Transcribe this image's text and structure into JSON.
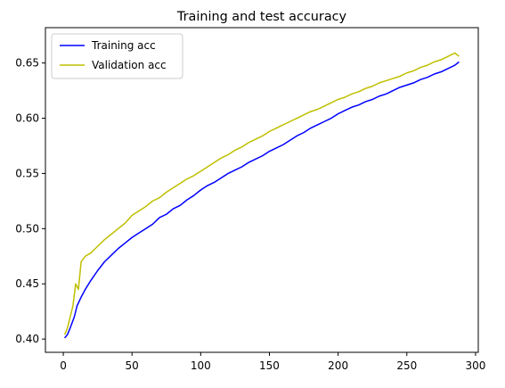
{
  "chart_data": {
    "type": "line",
    "title": "Training and test accuracy",
    "xlabel": "",
    "ylabel": "",
    "xlim": [
      -13,
      302
    ],
    "ylim": [
      0.388,
      0.682
    ],
    "xticks": [
      0,
      50,
      100,
      150,
      200,
      250,
      300
    ],
    "yticks": [
      0.4,
      0.45,
      0.5,
      0.55,
      0.6,
      0.65
    ],
    "grid": false,
    "legend": "top-left",
    "series": [
      {
        "name": "Training acc",
        "color": "#0000ff",
        "points": [
          [
            1,
            0.401
          ],
          [
            3,
            0.404
          ],
          [
            5,
            0.41
          ],
          [
            8,
            0.42
          ],
          [
            10,
            0.43
          ],
          [
            13,
            0.438
          ],
          [
            16,
            0.445
          ],
          [
            20,
            0.453
          ],
          [
            25,
            0.462
          ],
          [
            30,
            0.47
          ],
          [
            35,
            0.476
          ],
          [
            40,
            0.482
          ],
          [
            45,
            0.487
          ],
          [
            50,
            0.492
          ],
          [
            55,
            0.496
          ],
          [
            60,
            0.5
          ],
          [
            65,
            0.504
          ],
          [
            70,
            0.51
          ],
          [
            75,
            0.513
          ],
          [
            80,
            0.518
          ],
          [
            85,
            0.521
          ],
          [
            90,
            0.526
          ],
          [
            95,
            0.53
          ],
          [
            100,
            0.535
          ],
          [
            105,
            0.539
          ],
          [
            110,
            0.542
          ],
          [
            115,
            0.546
          ],
          [
            120,
            0.55
          ],
          [
            125,
            0.553
          ],
          [
            130,
            0.556
          ],
          [
            135,
            0.56
          ],
          [
            140,
            0.563
          ],
          [
            145,
            0.566
          ],
          [
            150,
            0.57
          ],
          [
            155,
            0.573
          ],
          [
            160,
            0.576
          ],
          [
            165,
            0.58
          ],
          [
            170,
            0.584
          ],
          [
            175,
            0.587
          ],
          [
            180,
            0.591
          ],
          [
            185,
            0.594
          ],
          [
            190,
            0.597
          ],
          [
            195,
            0.6
          ],
          [
            200,
            0.604
          ],
          [
            205,
            0.607
          ],
          [
            210,
            0.61
          ],
          [
            215,
            0.612
          ],
          [
            220,
            0.615
          ],
          [
            225,
            0.617
          ],
          [
            230,
            0.62
          ],
          [
            235,
            0.622
          ],
          [
            240,
            0.625
          ],
          [
            245,
            0.628
          ],
          [
            250,
            0.63
          ],
          [
            255,
            0.632
          ],
          [
            260,
            0.635
          ],
          [
            265,
            0.637
          ],
          [
            270,
            0.64
          ],
          [
            275,
            0.642
          ],
          [
            280,
            0.645
          ],
          [
            285,
            0.648
          ],
          [
            288,
            0.651
          ]
        ]
      },
      {
        "name": "Validation acc",
        "color": "#bfbf00",
        "points": [
          [
            1,
            0.404
          ],
          [
            3,
            0.41
          ],
          [
            5,
            0.42
          ],
          [
            7,
            0.43
          ],
          [
            9,
            0.45
          ],
          [
            11,
            0.445
          ],
          [
            13,
            0.47
          ],
          [
            16,
            0.475
          ],
          [
            20,
            0.478
          ],
          [
            25,
            0.484
          ],
          [
            30,
            0.49
          ],
          [
            35,
            0.495
          ],
          [
            40,
            0.5
          ],
          [
            45,
            0.505
          ],
          [
            50,
            0.512
          ],
          [
            55,
            0.516
          ],
          [
            60,
            0.52
          ],
          [
            65,
            0.525
          ],
          [
            70,
            0.528
          ],
          [
            75,
            0.533
          ],
          [
            80,
            0.537
          ],
          [
            85,
            0.541
          ],
          [
            90,
            0.545
          ],
          [
            95,
            0.548
          ],
          [
            100,
            0.552
          ],
          [
            105,
            0.556
          ],
          [
            110,
            0.56
          ],
          [
            115,
            0.564
          ],
          [
            120,
            0.567
          ],
          [
            125,
            0.571
          ],
          [
            130,
            0.574
          ],
          [
            135,
            0.578
          ],
          [
            140,
            0.581
          ],
          [
            145,
            0.584
          ],
          [
            150,
            0.588
          ],
          [
            155,
            0.591
          ],
          [
            160,
            0.594
          ],
          [
            165,
            0.597
          ],
          [
            170,
            0.6
          ],
          [
            175,
            0.603
          ],
          [
            180,
            0.606
          ],
          [
            185,
            0.608
          ],
          [
            190,
            0.611
          ],
          [
            195,
            0.614
          ],
          [
            200,
            0.617
          ],
          [
            205,
            0.619
          ],
          [
            210,
            0.622
          ],
          [
            215,
            0.624
          ],
          [
            220,
            0.627
          ],
          [
            225,
            0.629
          ],
          [
            230,
            0.632
          ],
          [
            235,
            0.634
          ],
          [
            240,
            0.636
          ],
          [
            245,
            0.638
          ],
          [
            250,
            0.641
          ],
          [
            255,
            0.643
          ],
          [
            260,
            0.646
          ],
          [
            265,
            0.648
          ],
          [
            270,
            0.651
          ],
          [
            275,
            0.653
          ],
          [
            280,
            0.656
          ],
          [
            285,
            0.659
          ],
          [
            288,
            0.656
          ]
        ]
      }
    ]
  }
}
